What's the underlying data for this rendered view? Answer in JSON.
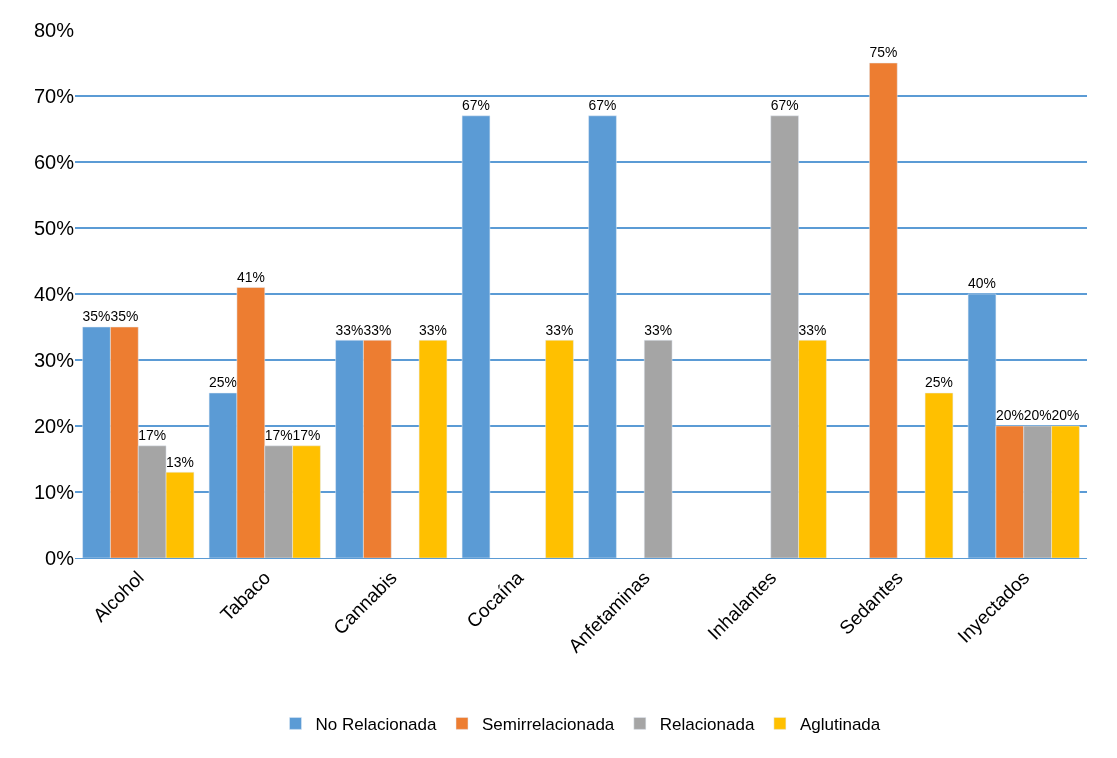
{
  "chart_data": {
    "type": "bar",
    "categories": [
      "Alcohol",
      "Tabaco",
      "Cannabis",
      "Cocaína",
      "Anfetaminas",
      "Inhalantes",
      "Sedantes",
      "Inyectados"
    ],
    "series": [
      {
        "name": "No Relacionada",
        "color": "#5b9bd5",
        "values": [
          35,
          25,
          33,
          67,
          67,
          null,
          null,
          40
        ],
        "value_labels": [
          "35%",
          "25%",
          "33%",
          "67%",
          "67%",
          null,
          null,
          "40%"
        ]
      },
      {
        "name": "Semirrelacionada",
        "color": "#ed7d31",
        "values": [
          35,
          41,
          33,
          null,
          null,
          null,
          75,
          20
        ],
        "value_labels": [
          "35%",
          "41%",
          "33%",
          null,
          null,
          null,
          "75%",
          "20%"
        ]
      },
      {
        "name": "Relacionada",
        "color": "#a5a5a5",
        "values": [
          17,
          17,
          null,
          null,
          33,
          67,
          null,
          20
        ],
        "value_labels": [
          "17%",
          "17%",
          null,
          null,
          "33%",
          "67%",
          null,
          "20%"
        ]
      },
      {
        "name": "Aglutinada",
        "color": "#ffc000",
        "values": [
          13,
          17,
          33,
          33,
          null,
          33,
          25,
          20
        ],
        "value_labels": [
          "13%",
          "17%",
          "33%",
          "33%",
          null,
          "33%",
          "25%",
          "20%"
        ]
      }
    ],
    "ylim": [
      0,
      80
    ],
    "yticks": [
      {
        "value": 0,
        "label": "0%"
      },
      {
        "value": 10,
        "label": "10%"
      },
      {
        "value": 20,
        "label": "20%"
      },
      {
        "value": 30,
        "label": "30%"
      },
      {
        "value": 40,
        "label": "40%"
      },
      {
        "value": 50,
        "label": "50%"
      },
      {
        "value": 60,
        "label": "60%"
      },
      {
        "value": 70,
        "label": "70%"
      },
      {
        "value": 80,
        "label": "80%"
      }
    ],
    "grid": "y",
    "legend": "bottom"
  }
}
